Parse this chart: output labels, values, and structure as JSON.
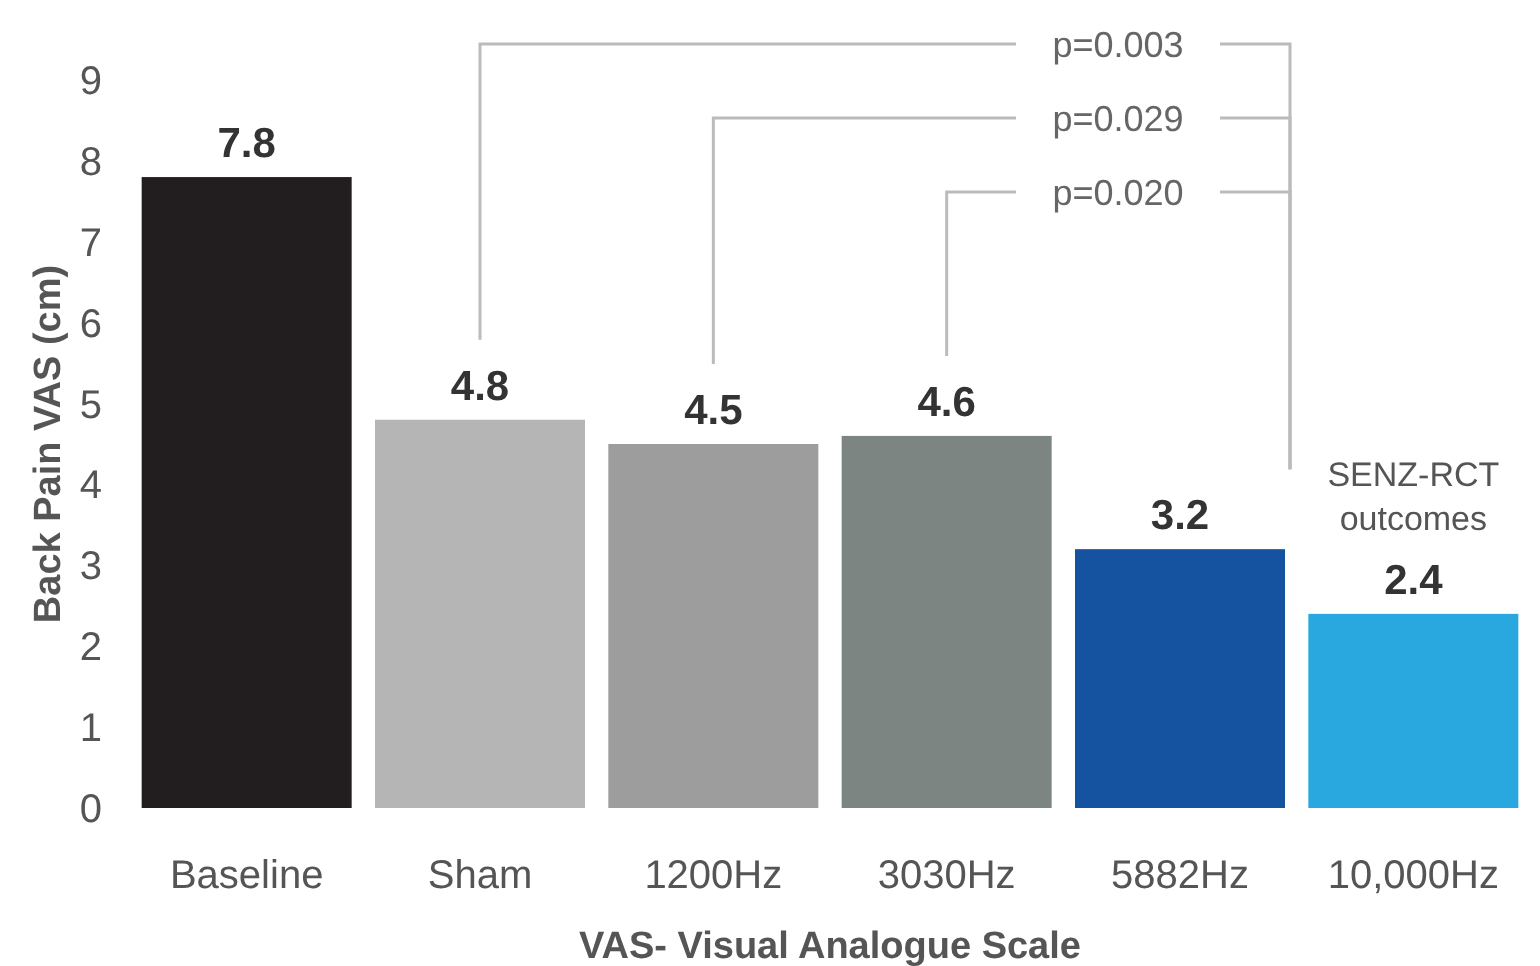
{
  "chart_data": {
    "type": "bar",
    "xlabel": "VAS- Visual Analogue Scale",
    "ylabel": "Back Pain VAS (cm)",
    "categories": [
      "Baseline",
      "Sham",
      "1200Hz",
      "3030Hz",
      "5882Hz",
      "10,000Hz"
    ],
    "values": [
      7.8,
      4.8,
      4.5,
      4.6,
      3.2,
      2.4
    ],
    "colors": [
      "#221e20",
      "#b5b5b5",
      "#9d9d9d",
      "#7d8583",
      "#1552a0",
      "#29a8e0"
    ],
    "data_labels": true,
    "ylim": [
      0,
      9
    ],
    "yticks": [
      0,
      1,
      2,
      3,
      4,
      5,
      6,
      7,
      8,
      9
    ],
    "grid": false,
    "annotations": [
      {
        "text": "p=0.003"
      },
      {
        "text": "p=0.029"
      },
      {
        "text": "p=0.020"
      },
      "SENZ-RCT outcomes"
    ]
  }
}
